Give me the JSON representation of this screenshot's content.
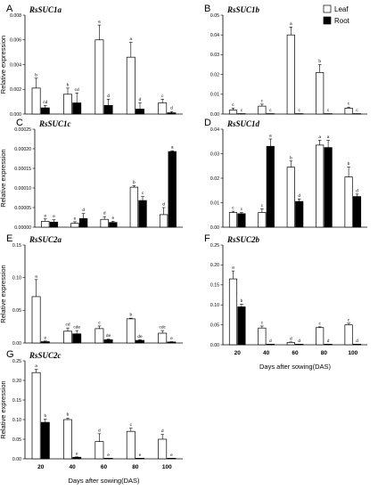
{
  "chart_data": [
    {
      "type": "bar",
      "panel_letter": "A",
      "title": "RsSUC1a",
      "categories": [
        "20",
        "40",
        "60",
        "80",
        "100"
      ],
      "ylim": [
        0,
        0.008
      ],
      "yticks": [
        "0.000",
        "0.002",
        "0.004",
        "0.006",
        "0.008"
      ],
      "ylabel": "Relative expression",
      "xlabel": "",
      "category_labels_visible": false,
      "series": [
        {
          "name": "Leaf",
          "color": "#ffffff",
          "values": [
            0.0021,
            0.0016,
            0.006,
            0.0046,
            0.0009
          ],
          "errors": [
            0.0008,
            0.0005,
            0.0012,
            0.0012,
            0.0003
          ],
          "labels": [
            "b",
            "b",
            "a",
            "a",
            "c"
          ]
        },
        {
          "name": "Root",
          "color": "#000000",
          "values": [
            0.0005,
            0.0009,
            0.0007,
            0.0004,
            0.0001
          ],
          "errors": [
            0.0002,
            0.0008,
            0.0005,
            0.0005,
            0.0001
          ],
          "labels": [
            "cd",
            "cd",
            "d",
            "d",
            "d"
          ]
        }
      ]
    },
    {
      "type": "bar",
      "panel_letter": "B",
      "title": "RsSUC1b",
      "categories": [
        "20",
        "40",
        "60",
        "80",
        "100"
      ],
      "ylim": [
        0,
        0.05
      ],
      "yticks": [
        "0.00",
        "0.01",
        "0.02",
        "0.03",
        "0.04",
        "0.05"
      ],
      "ylabel": "",
      "xlabel": "",
      "category_labels_visible": false,
      "series": [
        {
          "name": "Leaf",
          "color": "#ffffff",
          "values": [
            0.002,
            0.004,
            0.04,
            0.021,
            0.003
          ],
          "errors": [
            0.001,
            0.001,
            0.004,
            0.004,
            0.0005
          ],
          "labels": [
            "c",
            "c",
            "a",
            "b",
            "c"
          ]
        },
        {
          "name": "Root",
          "color": "#000000",
          "values": [
            0.0002,
            0.0002,
            0.0002,
            0.0002,
            0.0002
          ],
          "errors": [
            0,
            0,
            0,
            0,
            0
          ],
          "labels": [
            "c",
            "c",
            "c",
            "c",
            "c"
          ]
        }
      ]
    },
    {
      "type": "bar",
      "panel_letter": "C",
      "title": "RsSUC1c",
      "categories": [
        "20",
        "40",
        "60",
        "80",
        "100"
      ],
      "ylim": [
        0,
        0.00025
      ],
      "yticks": [
        "0.00000",
        "0.00005",
        "0.00010",
        "0.00015",
        "0.00020",
        "0.00025"
      ],
      "ylabel": "Relative expression",
      "xlabel": "",
      "category_labels_visible": false,
      "series": [
        {
          "name": "Leaf",
          "color": "#ffffff",
          "values": [
            1.5e-05,
            1e-05,
            2e-05,
            0.000102,
            3.2e-05
          ],
          "errors": [
            6e-06,
            4e-06,
            7e-06,
            4e-06,
            1.8e-05
          ],
          "labels": [
            "e",
            "e",
            "d",
            "b",
            "d"
          ]
        },
        {
          "name": "Root",
          "color": "#000000",
          "values": [
            1.3e-05,
            2.2e-05,
            1.2e-05,
            6.8e-05,
            0.000193
          ],
          "errors": [
            6e-06,
            1.3e-05,
            3e-06,
            1e-05,
            2e-06
          ],
          "labels": [
            "e",
            "d",
            "e",
            "c",
            "a"
          ]
        }
      ]
    },
    {
      "type": "bar",
      "panel_letter": "D",
      "title": "RsSUC1d",
      "categories": [
        "20",
        "40",
        "60",
        "80",
        "100"
      ],
      "ylim": [
        0,
        0.04
      ],
      "yticks": [
        "0.00",
        "0.01",
        "0.02",
        "0.03",
        "0.04"
      ],
      "ylabel": "",
      "xlabel": "",
      "category_labels_visible": false,
      "series": [
        {
          "name": "Leaf",
          "color": "#ffffff",
          "values": [
            0.006,
            0.006,
            0.0245,
            0.0335,
            0.0205
          ],
          "errors": [
            0.0005,
            0.0015,
            0.0025,
            0.002,
            0.004
          ],
          "labels": [
            "c",
            "c",
            "b",
            "a",
            "b"
          ]
        },
        {
          "name": "Root",
          "color": "#000000",
          "values": [
            0.0055,
            0.033,
            0.0105,
            0.0325,
            0.0125
          ],
          "errors": [
            0.0005,
            0.003,
            0.001,
            0.003,
            0.001
          ],
          "labels": [
            "c",
            "a",
            "d",
            "a",
            "d"
          ]
        }
      ]
    },
    {
      "type": "bar",
      "panel_letter": "E",
      "title": "RsSUC2a",
      "categories": [
        "20",
        "40",
        "60",
        "80",
        "100"
      ],
      "ylim": [
        0,
        0.15
      ],
      "yticks": [
        "0.00",
        "0.05",
        "0.10",
        "0.15"
      ],
      "ylabel": "Relative expression",
      "xlabel": "",
      "category_labels_visible": false,
      "series": [
        {
          "name": "Leaf",
          "color": "#ffffff",
          "values": [
            0.071,
            0.018,
            0.022,
            0.037,
            0.015
          ],
          "errors": [
            0.026,
            0.005,
            0.004,
            0.001,
            0.004
          ],
          "labels": [
            "a",
            "cd",
            "c",
            "b",
            "cdc"
          ]
        },
        {
          "name": "Root",
          "color": "#000000",
          "values": [
            0.002,
            0.014,
            0.005,
            0.004,
            0.0015
          ],
          "errors": [
            0.001,
            0.005,
            0.001,
            0.001,
            0.0005
          ],
          "labels": [
            "e",
            "cde",
            "de",
            "de",
            "e"
          ]
        }
      ]
    },
    {
      "type": "bar",
      "panel_letter": "F",
      "title": "RsSUC2b",
      "categories": [
        "20",
        "40",
        "60",
        "80",
        "100"
      ],
      "ylim": [
        0,
        0.25
      ],
      "yticks": [
        "0.00",
        "0.05",
        "0.10",
        "0.15",
        "0.20",
        "0.25"
      ],
      "ylabel": "",
      "xlabel": "Days after sowing(DAS)",
      "category_labels_visible": true,
      "series": [
        {
          "name": "Leaf",
          "color": "#ffffff",
          "values": [
            0.165,
            0.042,
            0.006,
            0.043,
            0.05
          ],
          "errors": [
            0.02,
            0.005,
            0.001,
            0.002,
            0.004
          ],
          "labels": [
            "a",
            "c",
            "d",
            "c",
            "c"
          ]
        },
        {
          "name": "Root",
          "color": "#000000",
          "values": [
            0.095,
            0.0015,
            0.0015,
            0.0015,
            0.0015
          ],
          "errors": [
            0.007,
            0,
            0,
            0,
            0
          ],
          "labels": [
            "b",
            "d",
            "d",
            "d",
            "d"
          ]
        }
      ]
    },
    {
      "type": "bar",
      "panel_letter": "G",
      "title": "RsSUC2c",
      "categories": [
        "20",
        "40",
        "60",
        "80",
        "100"
      ],
      "ylim": [
        0,
        0.25
      ],
      "yticks": [
        "0.00",
        "0.05",
        "0.10",
        "0.15",
        "0.20",
        "0.25"
      ],
      "ylabel": "Relative expression",
      "xlabel": "Days after sowing(DAS)",
      "category_labels_visible": true,
      "series": [
        {
          "name": "Leaf",
          "color": "#ffffff",
          "values": [
            0.22,
            0.1,
            0.044,
            0.07,
            0.05
          ],
          "errors": [
            0.008,
            0.004,
            0.02,
            0.008,
            0.012
          ],
          "labels": [
            "a",
            "b",
            "d",
            "c",
            "d"
          ]
        },
        {
          "name": "Root",
          "color": "#000000",
          "values": [
            0.093,
            0.004,
            0.0015,
            0.0015,
            0.0015
          ],
          "errors": [
            0.008,
            0.001,
            0,
            0,
            0
          ],
          "labels": [
            "b",
            "e",
            "e",
            "e",
            "e"
          ]
        }
      ]
    }
  ],
  "legend": {
    "items": [
      {
        "label": "Leaf",
        "color": "#ffffff"
      },
      {
        "label": "Root",
        "color": "#000000"
      }
    ],
    "placement": "top-right"
  }
}
